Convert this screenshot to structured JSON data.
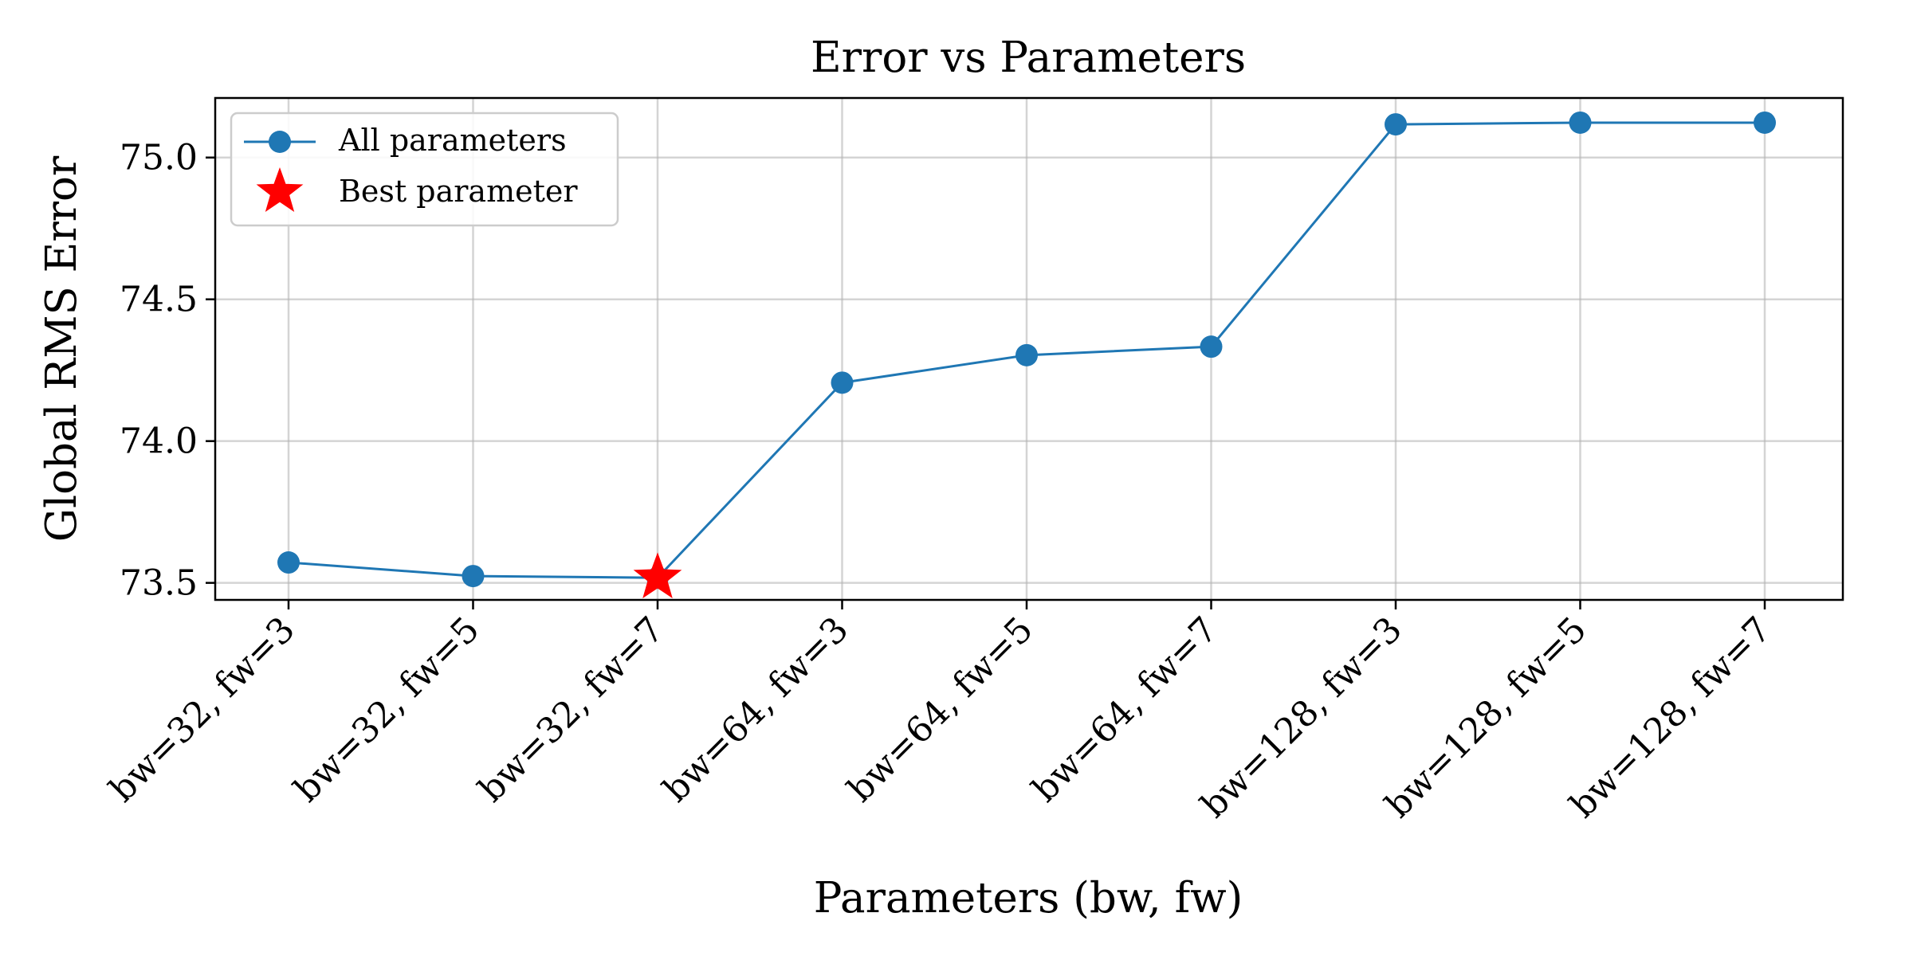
{
  "chart_data": {
    "type": "line",
    "title": "Error vs Parameters",
    "xlabel": "Parameters (bw, fw)",
    "ylabel": "Global RMS Error",
    "categories": [
      "bw=32, fw=3",
      "bw=32, fw=5",
      "bw=32, fw=7",
      "bw=64, fw=3",
      "bw=64, fw=5",
      "bw=64, fw=7",
      "bw=128, fw=3",
      "bw=128, fw=5",
      "bw=128, fw=7"
    ],
    "series": [
      {
        "name": "All parameters",
        "values": [
          73.572,
          73.524,
          73.518,
          74.206,
          74.303,
          74.333,
          75.117,
          75.123,
          75.123
        ],
        "color": "#1f77b4"
      }
    ],
    "best": {
      "name": "Best parameter",
      "category": "bw=32, fw=7",
      "value": 73.518,
      "color": "#ff0000"
    },
    "ylim": [
      73.44,
      75.21
    ],
    "yticks": [
      73.5,
      74.0,
      74.5,
      75.0
    ],
    "ytick_labels": [
      "73.5",
      "74.0",
      "74.5",
      "75.0"
    ],
    "grid": true,
    "legend_position": "top-left"
  }
}
